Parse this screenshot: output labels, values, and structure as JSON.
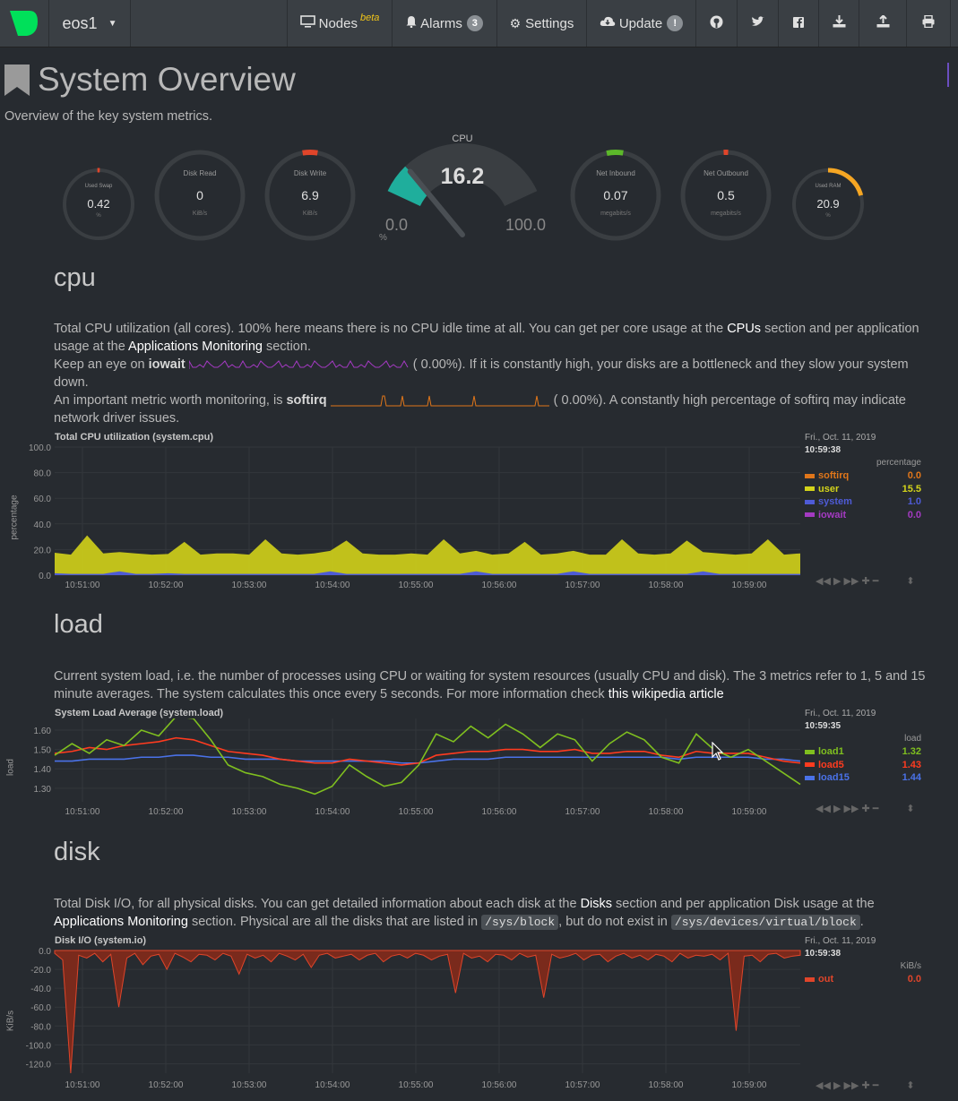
{
  "navbar": {
    "host": "eos1",
    "nodes_label": "Nodes",
    "nodes_beta": "beta",
    "alarms_label": "Alarms",
    "alarms_count": "3",
    "settings_label": "Settings",
    "update_label": "Update",
    "update_badge": "!"
  },
  "page": {
    "title": "System Overview",
    "subtitle": "Overview of the key system metrics."
  },
  "gauges": {
    "swap": {
      "label": "Used Swap",
      "value": "0.42",
      "unit": "%"
    },
    "disk_read": {
      "label": "Disk Read",
      "value": "0",
      "unit": "KiB/s"
    },
    "disk_write": {
      "label": "Disk Write",
      "value": "6.9",
      "unit": "KiB/s"
    },
    "cpu": {
      "label": "CPU",
      "value": "16.2",
      "min": "0.0",
      "max": "100.0",
      "unit": "%",
      "fraction": 0.162
    },
    "net_in": {
      "label": "Net Inbound",
      "value": "0.07",
      "unit": "megabits/s"
    },
    "net_out": {
      "label": "Net Outbound",
      "value": "0.5",
      "unit": "megabits/s"
    },
    "ram": {
      "label": "Used RAM",
      "value": "20.9",
      "unit": "%"
    }
  },
  "cpu_section": {
    "heading": "cpu",
    "p1a": "Total CPU utilization (all cores). 100% here means there is no CPU idle time at all. You can get per core usage at the ",
    "p1_link1": "CPUs",
    "p1b": " section and per application",
    "p1c": "usage at the ",
    "p1_link2": "Applications Monitoring",
    "p1d": " section.",
    "p2a": "Keep an eye on ",
    "p2_bold": "iowait",
    "p2b": "(       0.00%). If it is constantly high, your disks are a bottleneck and they slow your system",
    "p2c": "down.",
    "p3a": "An important metric worth monitoring, is ",
    "p3_bold": "softirq",
    "p3b": "(       0.00%). A constantly high percentage of softirq may indicate",
    "p3c": "network driver issues.",
    "chart_title": "Total CPU utilization (system.cpu)",
    "ylabel": "percentage",
    "date": "Fri., Oct. 11, 2019",
    "time": "10:59:38",
    "units": "percentage",
    "legend": [
      {
        "name": "softirq",
        "value": "0.0",
        "color": "#e0761a"
      },
      {
        "name": "user",
        "value": "15.5",
        "color": "#d4d41a"
      },
      {
        "name": "system",
        "value": "1.0",
        "color": "#4e5bd6"
      },
      {
        "name": "iowait",
        "value": "0.0",
        "color": "#a43ac2"
      }
    ]
  },
  "load_section": {
    "heading": "load",
    "p1": "Current system load, i.e. the number of processes using CPU or waiting for system resources (usually CPU and disk). The 3 metrics refer to 1, 5 and 15",
    "p2a": "minute averages. The system calculates this once every 5 seconds. For more information check ",
    "p2_link": "this wikipedia article",
    "chart_title": "System Load Average (system.load)",
    "ylabel": "load",
    "date": "Fri., Oct. 11, 2019",
    "time": "10:59:35",
    "units": "load",
    "legend": [
      {
        "name": "load1",
        "value": "1.32",
        "color": "#7fbf1f"
      },
      {
        "name": "load5",
        "value": "1.43",
        "color": "#ff3b1f"
      },
      {
        "name": "load15",
        "value": "1.44",
        "color": "#4a72e8"
      }
    ]
  },
  "disk_section": {
    "heading": "disk",
    "p1a": "Total Disk I/O, for all physical disks. You can get detailed information about each disk at the ",
    "p1_link": "Disks",
    "p1b": " section and per application Disk usage at the",
    "p2_link": "Applications Monitoring",
    "p2a": " section. Physical are all the disks that are listed in ",
    "code1": "/sys/block",
    "p2b": ", but do not exist in ",
    "code2": "/sys/devices/virtual/block",
    "p2c": ".",
    "chart_title": "Disk I/O (system.io)",
    "ylabel": "KiB/s",
    "date": "Fri., Oct. 11, 2019",
    "time": "10:59:38",
    "units": "KiB/s",
    "legend": [
      {
        "name": "out",
        "value": "0.0",
        "color": "#e0452a"
      }
    ]
  },
  "chart_data": [
    {
      "type": "area",
      "title": "Total CPU utilization (system.cpu)",
      "ylabel": "percentage",
      "ylim": [
        0,
        100
      ],
      "yticks": [
        "100.0",
        "80.0",
        "60.0",
        "40.0",
        "20.0",
        "0.0"
      ],
      "xticks": [
        "10:51:00",
        "10:52:00",
        "10:53:00",
        "10:54:00",
        "10:55:00",
        "10:56:00",
        "10:57:00",
        "10:58:00",
        "10:59:00"
      ],
      "series": [
        {
          "name": "user",
          "values": [
            16,
            15,
            30,
            16,
            15,
            16,
            15,
            15,
            25,
            15,
            16,
            16,
            15,
            27,
            16,
            15,
            16,
            16,
            26,
            16,
            15,
            15,
            16,
            15,
            27,
            16,
            16,
            15,
            16,
            25,
            15,
            16,
            16,
            15,
            15,
            27,
            16,
            15,
            16,
            26,
            15,
            16,
            15,
            16,
            27,
            15,
            16
          ]
        },
        {
          "name": "system",
          "values": [
            1.5,
            1,
            1,
            1,
            3,
            1,
            1,
            1.5,
            1,
            1,
            1,
            1,
            1,
            1,
            1,
            1,
            1,
            3,
            1,
            1,
            1,
            1,
            1,
            1,
            1,
            1,
            3,
            1,
            1,
            1,
            1,
            1,
            3,
            1,
            1,
            1,
            1,
            1,
            1,
            1,
            3,
            1,
            1,
            1,
            1,
            1,
            1
          ]
        },
        {
          "name": "softirq",
          "values": [
            0,
            0,
            0,
            0,
            0,
            0,
            0,
            0,
            0,
            0,
            0,
            0,
            0,
            0,
            0,
            0,
            0,
            0,
            0,
            0,
            0,
            0,
            0,
            0,
            0,
            0,
            0,
            0,
            0,
            0,
            0,
            0,
            0,
            0,
            0,
            0,
            0,
            0,
            0,
            0,
            0,
            0,
            0,
            0,
            0,
            0,
            0
          ]
        },
        {
          "name": "iowait",
          "values": [
            0,
            0,
            0,
            0,
            0,
            0,
            0,
            0,
            0,
            0,
            0,
            0,
            0,
            0,
            0,
            0,
            0,
            0,
            0,
            0,
            0,
            0,
            0,
            0,
            0,
            0,
            0,
            0,
            0,
            0,
            0,
            0,
            0,
            0,
            0,
            0,
            0,
            0,
            0,
            0,
            0,
            0,
            0,
            0,
            0,
            0,
            0
          ]
        }
      ]
    },
    {
      "type": "line",
      "title": "System Load Average (system.load)",
      "ylabel": "load",
      "ylim": [
        1.23,
        1.66
      ],
      "yticks": [
        "1.60",
        "1.50",
        "1.40",
        "1.30"
      ],
      "xticks": [
        "10:51:00",
        "10:52:00",
        "10:53:00",
        "10:54:00",
        "10:55:00",
        "10:56:00",
        "10:57:00",
        "10:58:00",
        "10:59:00"
      ],
      "series": [
        {
          "name": "load1",
          "values": [
            1.47,
            1.53,
            1.48,
            1.55,
            1.52,
            1.6,
            1.57,
            1.67,
            1.66,
            1.55,
            1.42,
            1.38,
            1.36,
            1.32,
            1.3,
            1.27,
            1.31,
            1.42,
            1.36,
            1.31,
            1.33,
            1.42,
            1.58,
            1.54,
            1.62,
            1.56,
            1.63,
            1.58,
            1.51,
            1.58,
            1.55,
            1.44,
            1.53,
            1.59,
            1.55,
            1.46,
            1.43,
            1.58,
            1.5,
            1.46,
            1.5,
            1.44,
            1.38,
            1.32
          ]
        },
        {
          "name": "load5",
          "values": [
            1.48,
            1.49,
            1.51,
            1.5,
            1.52,
            1.53,
            1.54,
            1.56,
            1.55,
            1.52,
            1.49,
            1.48,
            1.47,
            1.45,
            1.44,
            1.43,
            1.43,
            1.45,
            1.44,
            1.43,
            1.42,
            1.43,
            1.47,
            1.48,
            1.49,
            1.49,
            1.5,
            1.5,
            1.49,
            1.49,
            1.5,
            1.48,
            1.48,
            1.49,
            1.49,
            1.47,
            1.46,
            1.49,
            1.48,
            1.48,
            1.48,
            1.46,
            1.44,
            1.43
          ]
        },
        {
          "name": "load15",
          "values": [
            1.44,
            1.44,
            1.45,
            1.45,
            1.45,
            1.46,
            1.46,
            1.47,
            1.47,
            1.46,
            1.46,
            1.45,
            1.45,
            1.45,
            1.44,
            1.44,
            1.44,
            1.44,
            1.44,
            1.44,
            1.43,
            1.43,
            1.44,
            1.45,
            1.45,
            1.45,
            1.46,
            1.46,
            1.46,
            1.46,
            1.46,
            1.46,
            1.46,
            1.46,
            1.46,
            1.46,
            1.45,
            1.46,
            1.46,
            1.46,
            1.46,
            1.45,
            1.45,
            1.44
          ]
        }
      ]
    },
    {
      "type": "area",
      "title": "Disk I/O (system.io)",
      "ylabel": "KiB/s",
      "ylim": [
        -130,
        0
      ],
      "yticks": [
        "0.0",
        "-20.0",
        "-40.0",
        "-60.0",
        "-80.0",
        "-100.0",
        "-120.0"
      ],
      "xticks": [
        "10:51:00",
        "10:52:00",
        "10:53:00",
        "10:54:00",
        "10:55:00",
        "10:56:00",
        "10:57:00",
        "10:58:00",
        "10:59:00"
      ],
      "series": [
        {
          "name": "out",
          "values": [
            -3,
            -10,
            -130,
            -5,
            -8,
            -3,
            -12,
            -4,
            -60,
            -8,
            -3,
            -15,
            -6,
            -4,
            -20,
            -3,
            -7,
            -12,
            -4,
            -5,
            -10,
            -3,
            -6,
            -25,
            -4,
            -8,
            -5,
            -12,
            -3,
            -6,
            -10,
            -4,
            -18,
            -5,
            -3,
            -8,
            -6,
            -4,
            -10,
            -5,
            -3,
            -12,
            -6,
            -4,
            -8,
            -3,
            -5,
            -10,
            -6,
            -4,
            -45,
            -3,
            -8,
            -6,
            -12,
            -4,
            -5,
            -10,
            -3,
            -7,
            -5,
            -50,
            -4,
            -8,
            -6,
            -3,
            -10,
            -5,
            -4,
            -12,
            -6,
            -3,
            -8,
            -5,
            -10,
            -4,
            -6,
            -12,
            -3,
            -8,
            -5,
            -6,
            -4,
            -10,
            -3,
            -85,
            -6,
            -5,
            -12,
            -4,
            -3,
            -8,
            -6,
            -5
          ]
        }
      ]
    }
  ]
}
